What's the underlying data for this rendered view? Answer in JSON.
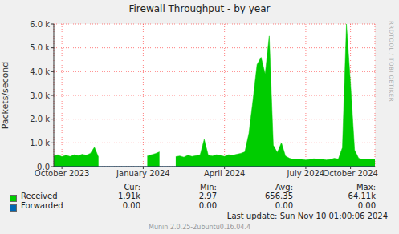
{
  "chart_data": {
    "type": "area",
    "title": "Firewall Throughput - by year",
    "y_label": "Packets/second",
    "categories": [
      null,
      null,
      "October 2023",
      null,
      null,
      null,
      null,
      null,
      null,
      null,
      null,
      null,
      null,
      null,
      null,
      null,
      null,
      null,
      null,
      null,
      null,
      null,
      "January 2024",
      null,
      null,
      null,
      null,
      null,
      null,
      null,
      null,
      null,
      null,
      null,
      null,
      null,
      null,
      null,
      null,
      null,
      null,
      null,
      "April 2024",
      null,
      null,
      null,
      null,
      null,
      null,
      null,
      null,
      null,
      null,
      null,
      null,
      null,
      null,
      null,
      null,
      null,
      null,
      null,
      "July 2024",
      null,
      null,
      null,
      null,
      null,
      null,
      null,
      null,
      null,
      null,
      "October 2024",
      null,
      null,
      null,
      null,
      null,
      null
    ],
    "series": [
      {
        "name": "Received",
        "color": "#00cc00",
        "type": "area",
        "stats": [
          "1.91k",
          "2.97",
          "656.35",
          "64.11k"
        ],
        "values": [
          450,
          500,
          420,
          480,
          430,
          500,
          460,
          520,
          480,
          560,
          820,
          400,
          null,
          null,
          null,
          null,
          null,
          null,
          null,
          null,
          null,
          null,
          null,
          450,
          500,
          550,
          620,
          null,
          null,
          null,
          420,
          450,
          400,
          480,
          430,
          460,
          500,
          1150,
          480,
          450,
          500,
          470,
          430,
          500,
          480,
          520,
          560,
          620,
          1400,
          2800,
          4300,
          4600,
          3900,
          5500,
          900,
          600,
          1000,
          450,
          350,
          300,
          320,
          300,
          280,
          300,
          330,
          300,
          320,
          280,
          300,
          350,
          320,
          800,
          6000,
          3500,
          700,
          350,
          300,
          320,
          300,
          300
        ]
      },
      {
        "name": "Forwarded",
        "color": "#0066b3",
        "type": "line",
        "stats": [
          "0.00",
          "0.00",
          "0.00",
          "0.00"
        ],
        "values": [
          0,
          0,
          0,
          0,
          0,
          0,
          0,
          0,
          0,
          0,
          0,
          0,
          0,
          0,
          0,
          0,
          0,
          0,
          0,
          0,
          0,
          0,
          0,
          0,
          0,
          0,
          0,
          0,
          0,
          0,
          0,
          0,
          0,
          0,
          0,
          0,
          0,
          0,
          0,
          0,
          0,
          0,
          0,
          0,
          0,
          0,
          0,
          0,
          0,
          0,
          0,
          0,
          0,
          0,
          0,
          0,
          0,
          0,
          0,
          0,
          0,
          0,
          0,
          0,
          0,
          0,
          0,
          0,
          0,
          0,
          0,
          0,
          0,
          0,
          0,
          0,
          0,
          0,
          0,
          0
        ]
      }
    ],
    "stats_columns": [
      "Cur:",
      "Min:",
      "Avg:",
      "Max:"
    ],
    "ylim": [
      0,
      6000
    ],
    "yticks": [
      {
        "value": 0,
        "label": "0.0"
      },
      {
        "value": 1000,
        "label": "1.0 k"
      },
      {
        "value": 2000,
        "label": "2.0 k"
      },
      {
        "value": 3000,
        "label": "3.0 k"
      },
      {
        "value": 4000,
        "label": "4.0 k"
      },
      {
        "value": 5000,
        "label": "5.0 k"
      },
      {
        "value": 6000,
        "label": "6.0 k"
      }
    ],
    "grid": true,
    "legend": "bottom",
    "annotations": {
      "last_update": "Last update: Sun Nov 10 01:00:06 2024",
      "version": "Munin 2.0.25-2ubuntu0.16.04.4",
      "watermark": "RRDTOOL / TOBI OETIKER"
    }
  }
}
